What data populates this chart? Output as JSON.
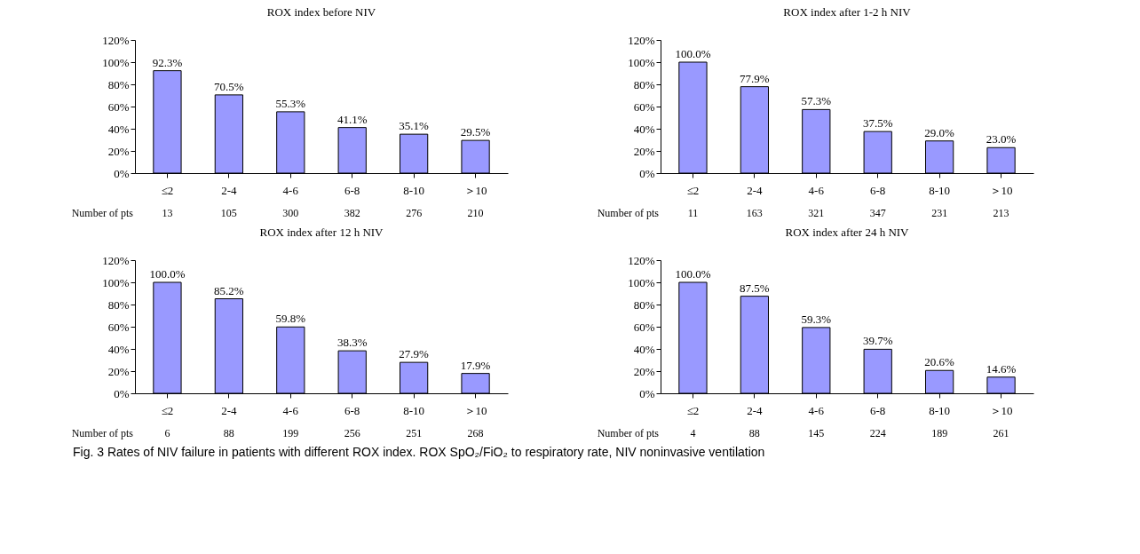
{
  "chart_data": [
    {
      "type": "bar",
      "title": "ROX index before NIV",
      "categories": [
        "≤2",
        "2-4",
        "4-6",
        "6-8",
        "8-10",
        "＞10"
      ],
      "values": [
        92.3,
        70.5,
        55.3,
        41.1,
        35.1,
        29.5
      ],
      "value_labels": [
        "92.3%",
        "70.5%",
        "55.3%",
        "41.1%",
        "35.1%",
        "29.5%"
      ],
      "color": "#9999ff",
      "ylim": [
        0,
        120
      ],
      "yticks": [
        {
          "value": 0,
          "label": "0%"
        },
        {
          "value": 20,
          "label": "20%"
        },
        {
          "value": 40,
          "label": "40%"
        },
        {
          "value": 60,
          "label": "60%"
        },
        {
          "value": 80,
          "label": "80%"
        },
        {
          "value": 100,
          "label": "100%"
        },
        {
          "value": 120,
          "label": "120%"
        }
      ],
      "grid": false,
      "annotations": [
        "Number of pts",
        "13",
        "105",
        "300",
        "382",
        "276",
        "210"
      ]
    },
    {
      "type": "bar",
      "title": "ROX index after 1-2 h NIV",
      "categories": [
        "≤2",
        "2-4",
        "4-6",
        "6-8",
        "8-10",
        "＞10"
      ],
      "values": [
        100.0,
        77.9,
        57.3,
        37.5,
        29.0,
        23.0
      ],
      "value_labels": [
        "100.0%",
        "77.9%",
        "57.3%",
        "37.5%",
        "29.0%",
        "23.0%"
      ],
      "color": "#9999ff",
      "ylim": [
        0,
        120
      ],
      "yticks": [
        {
          "value": 0,
          "label": "0%"
        },
        {
          "value": 20,
          "label": "20%"
        },
        {
          "value": 40,
          "label": "40%"
        },
        {
          "value": 60,
          "label": "60%"
        },
        {
          "value": 80,
          "label": "80%"
        },
        {
          "value": 100,
          "label": "100%"
        },
        {
          "value": 120,
          "label": "120%"
        }
      ],
      "grid": false,
      "annotations": [
        "Number of pts",
        "11",
        "163",
        "321",
        "347",
        "231",
        "213"
      ]
    },
    {
      "type": "bar",
      "title": "ROX index after 12 h NIV",
      "categories": [
        "≤2",
        "2-4",
        "4-6",
        "6-8",
        "8-10",
        "＞10"
      ],
      "values": [
        100.0,
        85.2,
        59.8,
        38.3,
        27.9,
        17.9
      ],
      "value_labels": [
        "100.0%",
        "85.2%",
        "59.8%",
        "38.3%",
        "27.9%",
        "17.9%"
      ],
      "color": "#9999ff",
      "ylim": [
        0,
        120
      ],
      "yticks": [
        {
          "value": 0,
          "label": "0%"
        },
        {
          "value": 20,
          "label": "20%"
        },
        {
          "value": 40,
          "label": "40%"
        },
        {
          "value": 60,
          "label": "60%"
        },
        {
          "value": 80,
          "label": "80%"
        },
        {
          "value": 100,
          "label": "100%"
        },
        {
          "value": 120,
          "label": "120%"
        }
      ],
      "grid": false,
      "annotations": [
        "Number of pts",
        "6",
        "88",
        "199",
        "256",
        "251",
        "268"
      ]
    },
    {
      "type": "bar",
      "title": "ROX index after 24 h NIV",
      "categories": [
        "≤2",
        "2-4",
        "4-6",
        "6-8",
        "8-10",
        "＞10"
      ],
      "values": [
        100.0,
        87.5,
        59.3,
        39.7,
        20.6,
        14.6
      ],
      "value_labels": [
        "100.0%",
        "87.5%",
        "59.3%",
        "39.7%",
        "20.6%",
        "14.6%"
      ],
      "color": "#9999ff",
      "ylim": [
        0,
        120
      ],
      "yticks": [
        {
          "value": 0,
          "label": "0%"
        },
        {
          "value": 20,
          "label": "20%"
        },
        {
          "value": 40,
          "label": "40%"
        },
        {
          "value": 60,
          "label": "60%"
        },
        {
          "value": 80,
          "label": "80%"
        },
        {
          "value": 100,
          "label": "100%"
        },
        {
          "value": 120,
          "label": "120%"
        }
      ],
      "grid": false,
      "annotations": [
        "Number of pts",
        "4",
        "88",
        "145",
        "224",
        "189",
        "261",
        "Fig. 3  Rates of NIV failure in patients with different ROX index. ROX SpO₂/FiO₂ to respiratory rate, NIV noninvasive ventilation"
      ]
    }
  ]
}
